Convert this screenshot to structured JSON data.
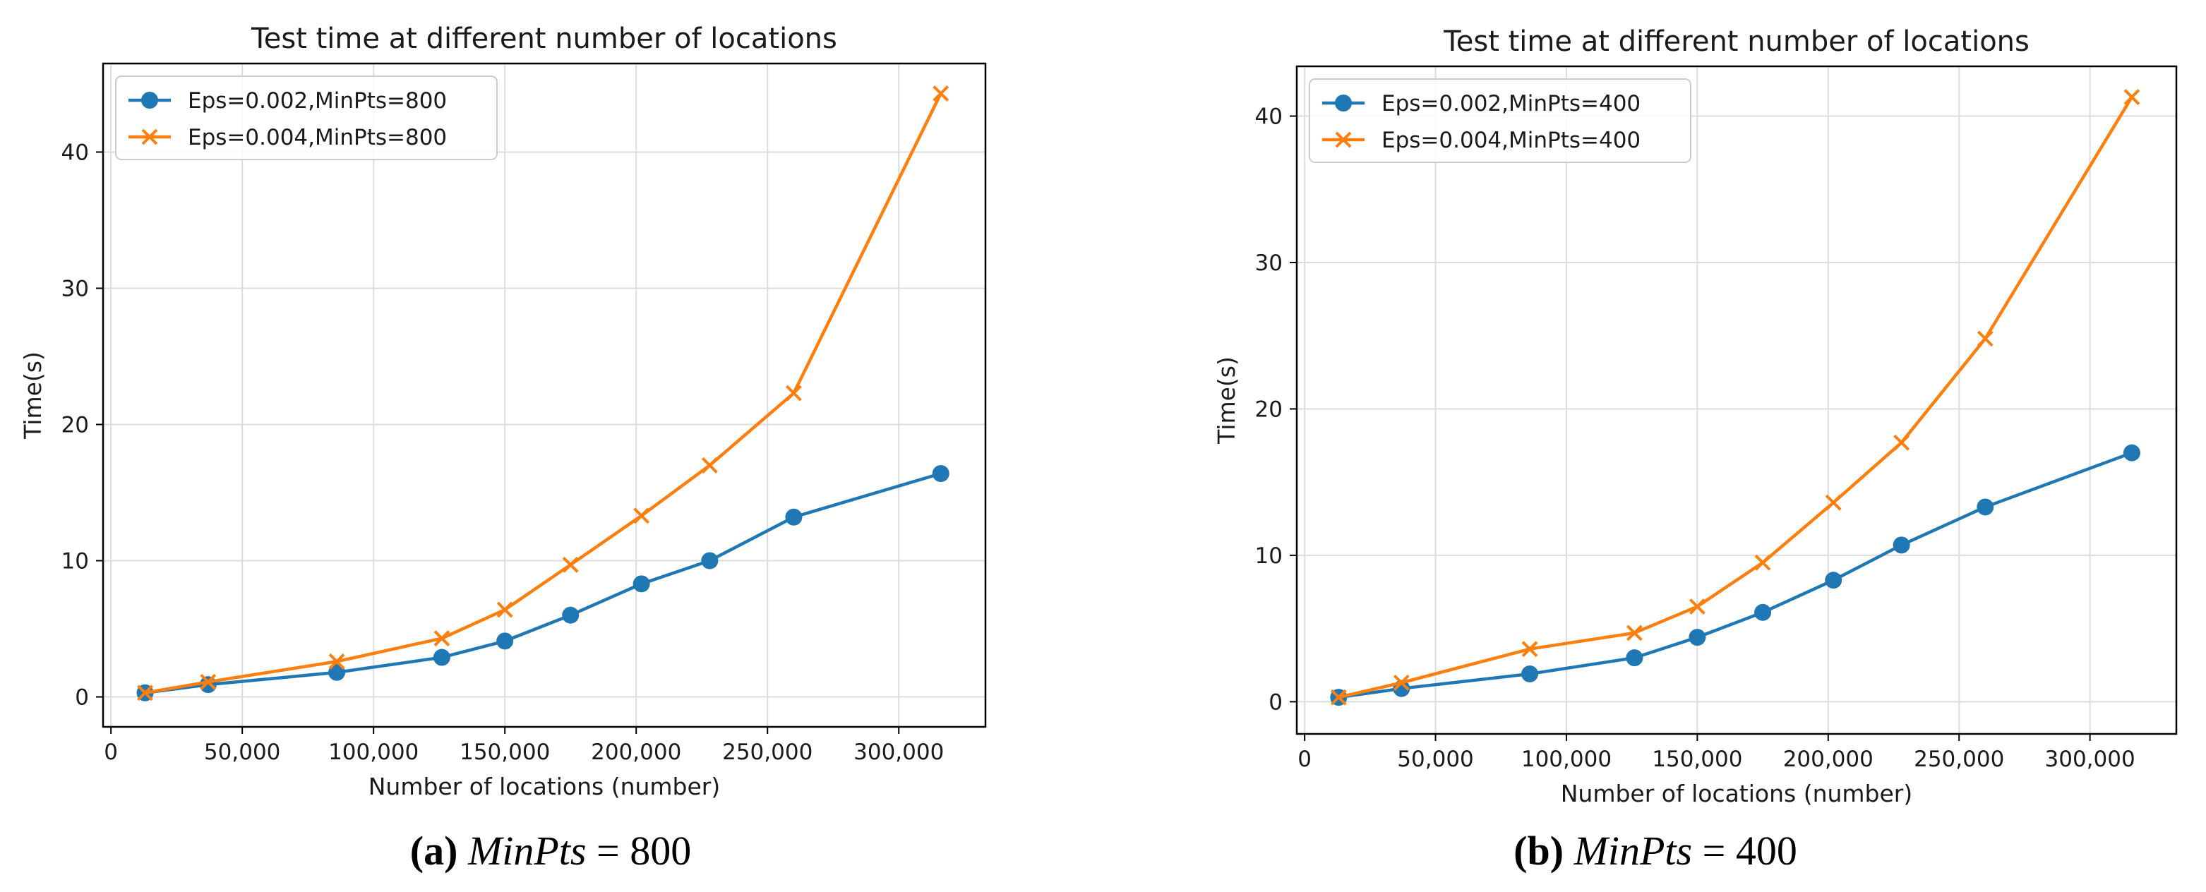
{
  "chart_data": [
    {
      "type": "line",
      "title": "Test time at different number of locations",
      "xlabel": "Number of locations (number)",
      "ylabel": "Time(s)",
      "xlim": [
        -3000,
        333000
      ],
      "ylim": [
        -2.2,
        46.5
      ],
      "xticks": [
        0,
        50000,
        100000,
        150000,
        200000,
        250000,
        300000
      ],
      "xtick_labels": [
        "0",
        "50,000",
        "100,000",
        "150,000",
        "200,000",
        "250,000",
        "300,000"
      ],
      "yticks": [
        0,
        10,
        20,
        30,
        40
      ],
      "ytick_labels": [
        "0",
        "10",
        "20",
        "30",
        "40"
      ],
      "grid": true,
      "legend_position": "top-left",
      "x": [
        13000,
        37000,
        86000,
        126000,
        150000,
        175000,
        202000,
        228000,
        260000,
        316000
      ],
      "series": [
        {
          "name": "Eps=0.002,MinPts=800",
          "color": "#1f77b4",
          "marker": "circle",
          "values": [
            0.3,
            0.9,
            1.8,
            2.9,
            4.1,
            6.0,
            8.3,
            10.0,
            13.2,
            16.4
          ]
        },
        {
          "name": "Eps=0.004,MinPts=800",
          "color": "#ff7f0e",
          "marker": "x",
          "values": [
            0.3,
            1.1,
            2.6,
            4.3,
            6.4,
            9.7,
            13.3,
            17.0,
            22.3,
            44.3
          ]
        }
      ]
    },
    {
      "type": "line",
      "title": "Test time at different number of locations",
      "xlabel": "Number of locations (number)",
      "ylabel": "Time(s)",
      "xlim": [
        -3000,
        333000
      ],
      "ylim": [
        -2.2,
        43.4
      ],
      "xticks": [
        0,
        50000,
        100000,
        150000,
        200000,
        250000,
        300000
      ],
      "xtick_labels": [
        "0",
        "50,000",
        "100,000",
        "150,000",
        "200,000",
        "250,000",
        "300,000"
      ],
      "yticks": [
        0,
        10,
        20,
        30,
        40
      ],
      "ytick_labels": [
        "0",
        "10",
        "20",
        "30",
        "40"
      ],
      "grid": true,
      "legend_position": "top-left",
      "x": [
        13000,
        37000,
        86000,
        126000,
        150000,
        175000,
        202000,
        228000,
        260000,
        316000
      ],
      "series": [
        {
          "name": "Eps=0.002,MinPts=400",
          "color": "#1f77b4",
          "marker": "circle",
          "values": [
            0.3,
            0.9,
            1.9,
            3.0,
            4.4,
            6.1,
            8.3,
            10.7,
            13.3,
            17.0
          ]
        },
        {
          "name": "Eps=0.004,MinPts=400",
          "color": "#ff7f0e",
          "marker": "x",
          "values": [
            0.3,
            1.3,
            3.6,
            4.7,
            6.5,
            9.5,
            13.6,
            17.7,
            24.8,
            41.3
          ]
        }
      ]
    }
  ],
  "captions": [
    {
      "label": "(a)",
      "param": "MinPts",
      "text": " = 800"
    },
    {
      "label": "(b)",
      "param": "MinPts",
      "text": " = 400"
    }
  ]
}
